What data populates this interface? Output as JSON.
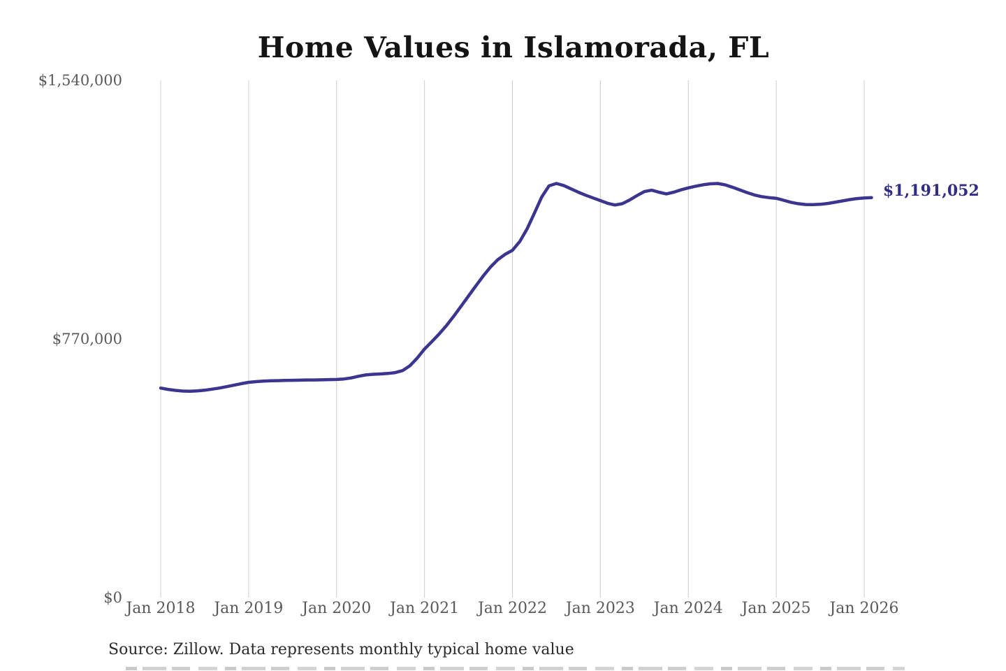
{
  "page": {
    "title": "Home Values in Islamorada, FL",
    "source_note": "Source: Zillow. Data represents monthly typical home value",
    "latest_value_label": "$1,191,052"
  },
  "colors": {
    "line": "#3b3590",
    "latest_label": "#312d85",
    "gridline": "#cccccc",
    "tick_label": "#595959",
    "title": "#141414",
    "source": "#2b2b2b"
  },
  "chart_data": {
    "type": "line",
    "title": "Home Values in Islamorada, FL",
    "x_start": "2018-01",
    "x_interval": "monthly",
    "x_tick_labels": [
      "Jan 2018",
      "Jan 2019",
      "Jan 2020",
      "Jan 2021",
      "Jan 2022",
      "Jan 2023",
      "Jan 2024",
      "Jan 2025",
      "Jan 2026"
    ],
    "x_tick_month_indices": [
      0,
      12,
      24,
      36,
      48,
      60,
      72,
      84,
      96
    ],
    "y_ticks": [
      {
        "value": 0,
        "label": "$0"
      },
      {
        "value": 770000,
        "label": "$770,000"
      },
      {
        "value": 1540000,
        "label": "$1,540,000"
      }
    ],
    "ylim": [
      0,
      1540000
    ],
    "grid": "vertical-only",
    "legend": "none",
    "latest_value": 1191052,
    "values": [
      624000,
      620000,
      617000,
      615000,
      614500,
      615500,
      617500,
      620500,
      624000,
      628000,
      632500,
      637000,
      641000,
      643000,
      644500,
      645500,
      646000,
      646500,
      647000,
      647500,
      648000,
      648000,
      648500,
      649000,
      649500,
      651000,
      654000,
      659000,
      663000,
      665000,
      666000,
      667500,
      670000,
      676000,
      690000,
      713000,
      740000,
      762000,
      785000,
      810000,
      838000,
      868000,
      898000,
      928000,
      957000,
      984000,
      1006000,
      1022000,
      1034000,
      1060000,
      1098000,
      1145000,
      1193000,
      1226000,
      1233000,
      1227000,
      1217000,
      1207000,
      1198000,
      1190000,
      1182000,
      1174000,
      1169000,
      1173000,
      1184000,
      1197000,
      1209000,
      1213000,
      1207000,
      1202000,
      1207000,
      1214000,
      1220000,
      1225000,
      1229000,
      1232000,
      1233000,
      1229000,
      1222000,
      1214000,
      1206000,
      1199000,
      1194000,
      1191000,
      1189000,
      1183000,
      1177000,
      1173000,
      1170500,
      1170000,
      1171000,
      1173500,
      1177000,
      1181000,
      1185000,
      1188000,
      1190000,
      1191052
    ]
  }
}
